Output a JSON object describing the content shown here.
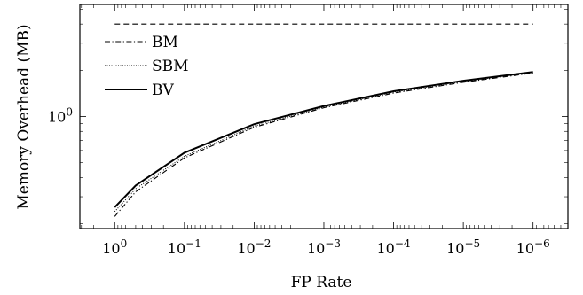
{
  "chart_data": {
    "type": "line",
    "xlabel": "FP Rate",
    "ylabel": "Memory Overhead (MB)",
    "x_scale": "log-reversed",
    "y_scale": "log",
    "x_ticks": [
      {
        "exp": "0",
        "value": 1
      },
      {
        "exp": "−1",
        "value": 0.1
      },
      {
        "exp": "−2",
        "value": 0.01
      },
      {
        "exp": "−3",
        "value": 0.001
      },
      {
        "exp": "−4",
        "value": 0.0001
      },
      {
        "exp": "−5",
        "value": 1e-05
      },
      {
        "exp": "−6",
        "value": 1e-06
      }
    ],
    "y_ticks": [
      {
        "exp": "0",
        "value": 1
      }
    ],
    "xlim": [
      3.16,
      3.16e-07
    ],
    "ylim": [
      0.186,
      5.37
    ],
    "x": [
      1,
      0.5,
      0.1,
      0.01,
      0.001,
      0.0001,
      1e-05,
      1e-06
    ],
    "series": [
      {
        "name": "BM",
        "style": "dashdot",
        "color": "#000000",
        "values": [
          0.223,
          0.323,
          0.537,
          0.85,
          1.14,
          1.42,
          1.67,
          1.92
        ]
      },
      {
        "name": "SBM",
        "style": "dotted",
        "color": "#000000",
        "values": [
          0.24,
          0.338,
          0.55,
          0.865,
          1.15,
          1.44,
          1.69,
          1.94
        ]
      },
      {
        "name": "BV",
        "style": "solid",
        "color": "#000000",
        "values": [
          0.256,
          0.355,
          0.58,
          0.89,
          1.17,
          1.46,
          1.71,
          1.95
        ]
      },
      {
        "style": "dashed",
        "color": "#000000",
        "values": [
          4.0,
          4.0,
          4.0,
          4.0,
          4.0,
          4.0,
          4.0,
          4.0
        ]
      }
    ],
    "legend": {
      "position": "top-left",
      "entries": [
        {
          "label": "BM",
          "style": "dashdot"
        },
        {
          "label": "SBM",
          "style": "dotted"
        },
        {
          "label": "BV",
          "style": "solid"
        }
      ]
    },
    "grid": false
  }
}
